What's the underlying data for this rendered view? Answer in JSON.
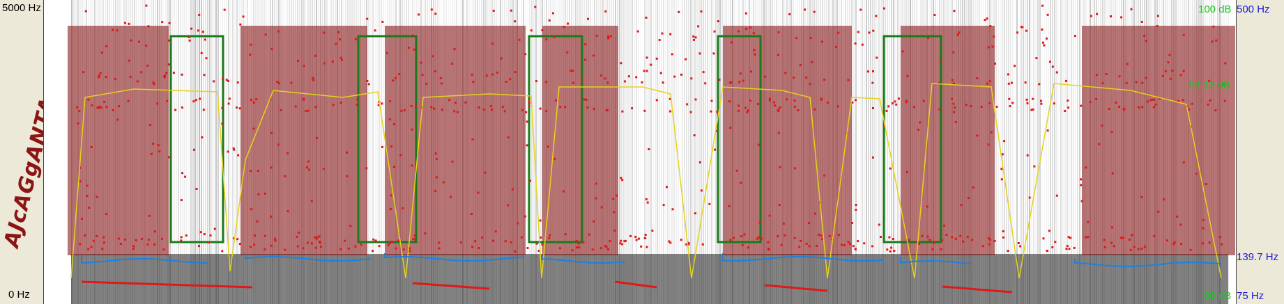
{
  "left_axis": {
    "top_label": "5000 Hz",
    "bottom_label": "0 Hz"
  },
  "right_axis": {
    "intensity_top": "100 dB",
    "intensity_mid": "63.13 dB",
    "intensity_bottom": "50 dB",
    "pitch_top": "500 Hz",
    "pitch_mid": "139.7 Hz",
    "pitch_bottom": "75 Hz"
  },
  "vertical_label": "AJcAGgANTAntAmpA",
  "colors": {
    "segment_fill": "#8b1a1a",
    "box_stroke": "#1a7a1a",
    "formant_dot": "#e01818",
    "pitch_line": "#1f7fe0",
    "intensity_line": "#e6d21a",
    "axis_green": "#22c022",
    "axis_blue": "#1a1ad8"
  }
}
